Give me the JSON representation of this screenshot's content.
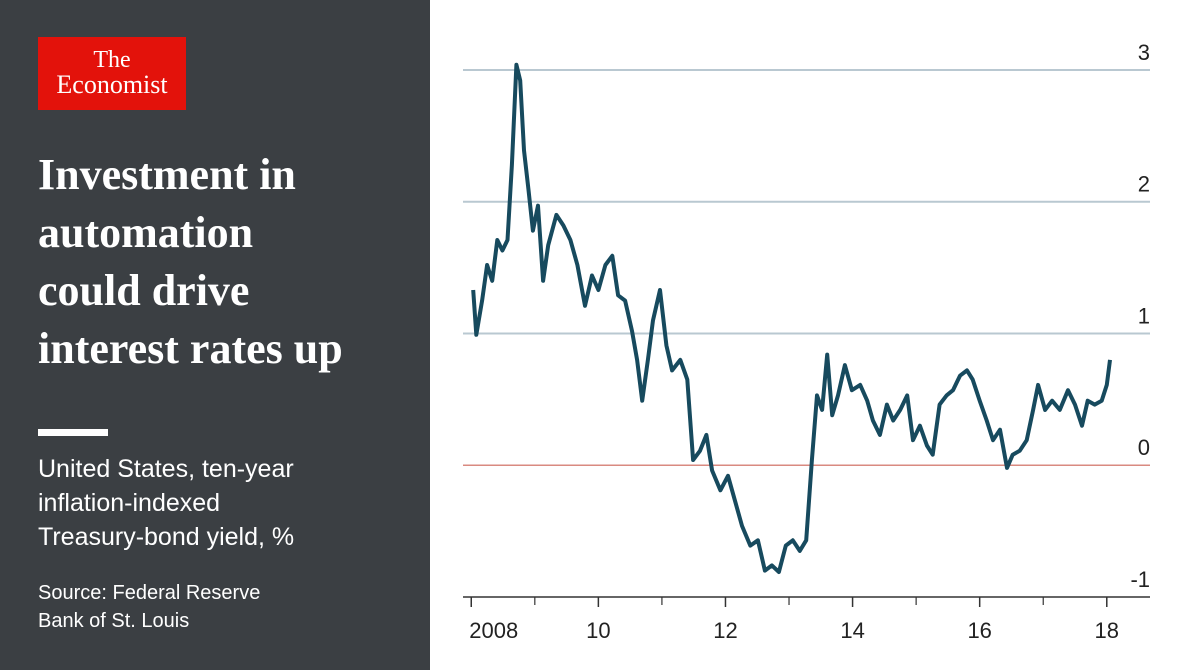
{
  "brand": {
    "line1": "The",
    "line2": "Economist"
  },
  "chart_data": {
    "type": "line",
    "title": [
      "Investment in",
      "automation",
      "could drive",
      "interest rates up"
    ],
    "subtitle": [
      "United States, ten-year",
      "inflation-indexed",
      "Treasury-bond yield, %"
    ],
    "source": [
      "Source: Federal Reserve",
      "Bank of St. Louis"
    ],
    "x": [
      2008.03,
      2008.08,
      2008.17,
      2008.25,
      2008.33,
      2008.41,
      2008.49,
      2008.57,
      2008.64,
      2008.71,
      2008.77,
      2008.83,
      2008.9,
      2008.97,
      2009.05,
      2009.13,
      2009.21,
      2009.34,
      2009.45,
      2009.56,
      2009.67,
      2009.79,
      2009.9,
      2010.0,
      2010.11,
      2010.22,
      2010.31,
      2010.42,
      2010.53,
      2010.61,
      2010.69,
      2010.78,
      2010.86,
      2010.97,
      2011.07,
      2011.16,
      2011.29,
      2011.4,
      2011.49,
      2011.6,
      2011.7,
      2011.79,
      2011.92,
      2012.04,
      2012.15,
      2012.26,
      2012.39,
      2012.51,
      2012.62,
      2012.73,
      2012.84,
      2012.95,
      2013.06,
      2013.17,
      2013.27,
      2013.36,
      2013.44,
      2013.52,
      2013.6,
      2013.68,
      2013.77,
      2013.88,
      2013.99,
      2014.12,
      2014.23,
      2014.32,
      2014.43,
      2014.54,
      2014.64,
      2014.75,
      2014.86,
      2014.95,
      2015.06,
      2015.17,
      2015.26,
      2015.37,
      2015.48,
      2015.58,
      2015.69,
      2015.8,
      2015.89,
      2016.0,
      2016.11,
      2016.21,
      2016.32,
      2016.43,
      2016.52,
      2016.63,
      2016.74,
      2016.84,
      2016.92,
      2017.03,
      2017.14,
      2017.26,
      2017.39,
      2017.5,
      2017.61,
      2017.7,
      2017.81,
      2017.92,
      2018.0,
      2018.05
    ],
    "series": [
      {
        "name": "Ten-year inflation-indexed Treasury-bond yield",
        "color": "#174a5e",
        "values": [
          1.33,
          0.99,
          1.25,
          1.52,
          1.4,
          1.71,
          1.63,
          1.71,
          2.28,
          3.04,
          2.92,
          2.39,
          2.09,
          1.78,
          1.97,
          1.4,
          1.67,
          1.9,
          1.82,
          1.71,
          1.52,
          1.21,
          1.44,
          1.33,
          1.52,
          1.59,
          1.29,
          1.25,
          1.02,
          0.8,
          0.49,
          0.8,
          1.1,
          1.33,
          0.91,
          0.72,
          0.8,
          0.65,
          0.04,
          0.11,
          0.23,
          -0.04,
          -0.19,
          -0.08,
          -0.27,
          -0.46,
          -0.61,
          -0.57,
          -0.8,
          -0.76,
          -0.81,
          -0.61,
          -0.57,
          -0.65,
          -0.57,
          0.04,
          0.53,
          0.42,
          0.84,
          0.38,
          0.53,
          0.76,
          0.57,
          0.61,
          0.49,
          0.34,
          0.23,
          0.46,
          0.34,
          0.42,
          0.53,
          0.19,
          0.3,
          0.15,
          0.08,
          0.46,
          0.53,
          0.57,
          0.68,
          0.72,
          0.65,
          0.49,
          0.34,
          0.19,
          0.27,
          -0.02,
          0.08,
          0.11,
          0.19,
          0.42,
          0.61,
          0.42,
          0.49,
          0.42,
          0.57,
          0.46,
          0.3,
          0.49,
          0.46,
          0.49,
          0.61,
          0.8
        ]
      }
    ],
    "xlim": [
      2007.87,
      2018.68
    ],
    "xticks": [
      2008,
      {
        "value": 2010,
        "label": "10"
      },
      {
        "value": 2012,
        "label": "12"
      },
      {
        "value": 2014,
        "label": "14"
      },
      {
        "value": 2016,
        "label": "16"
      },
      {
        "value": 2018,
        "label": "18"
      }
    ],
    "xminorticks": [
      2009,
      2011,
      2013,
      2015,
      2017
    ],
    "ylim": [
      -1,
      3
    ],
    "yticks": [
      -1,
      0,
      1,
      2,
      3
    ],
    "grid": true,
    "grid_color": "#b9c8d1",
    "zero_line_color": "#d98a80"
  }
}
